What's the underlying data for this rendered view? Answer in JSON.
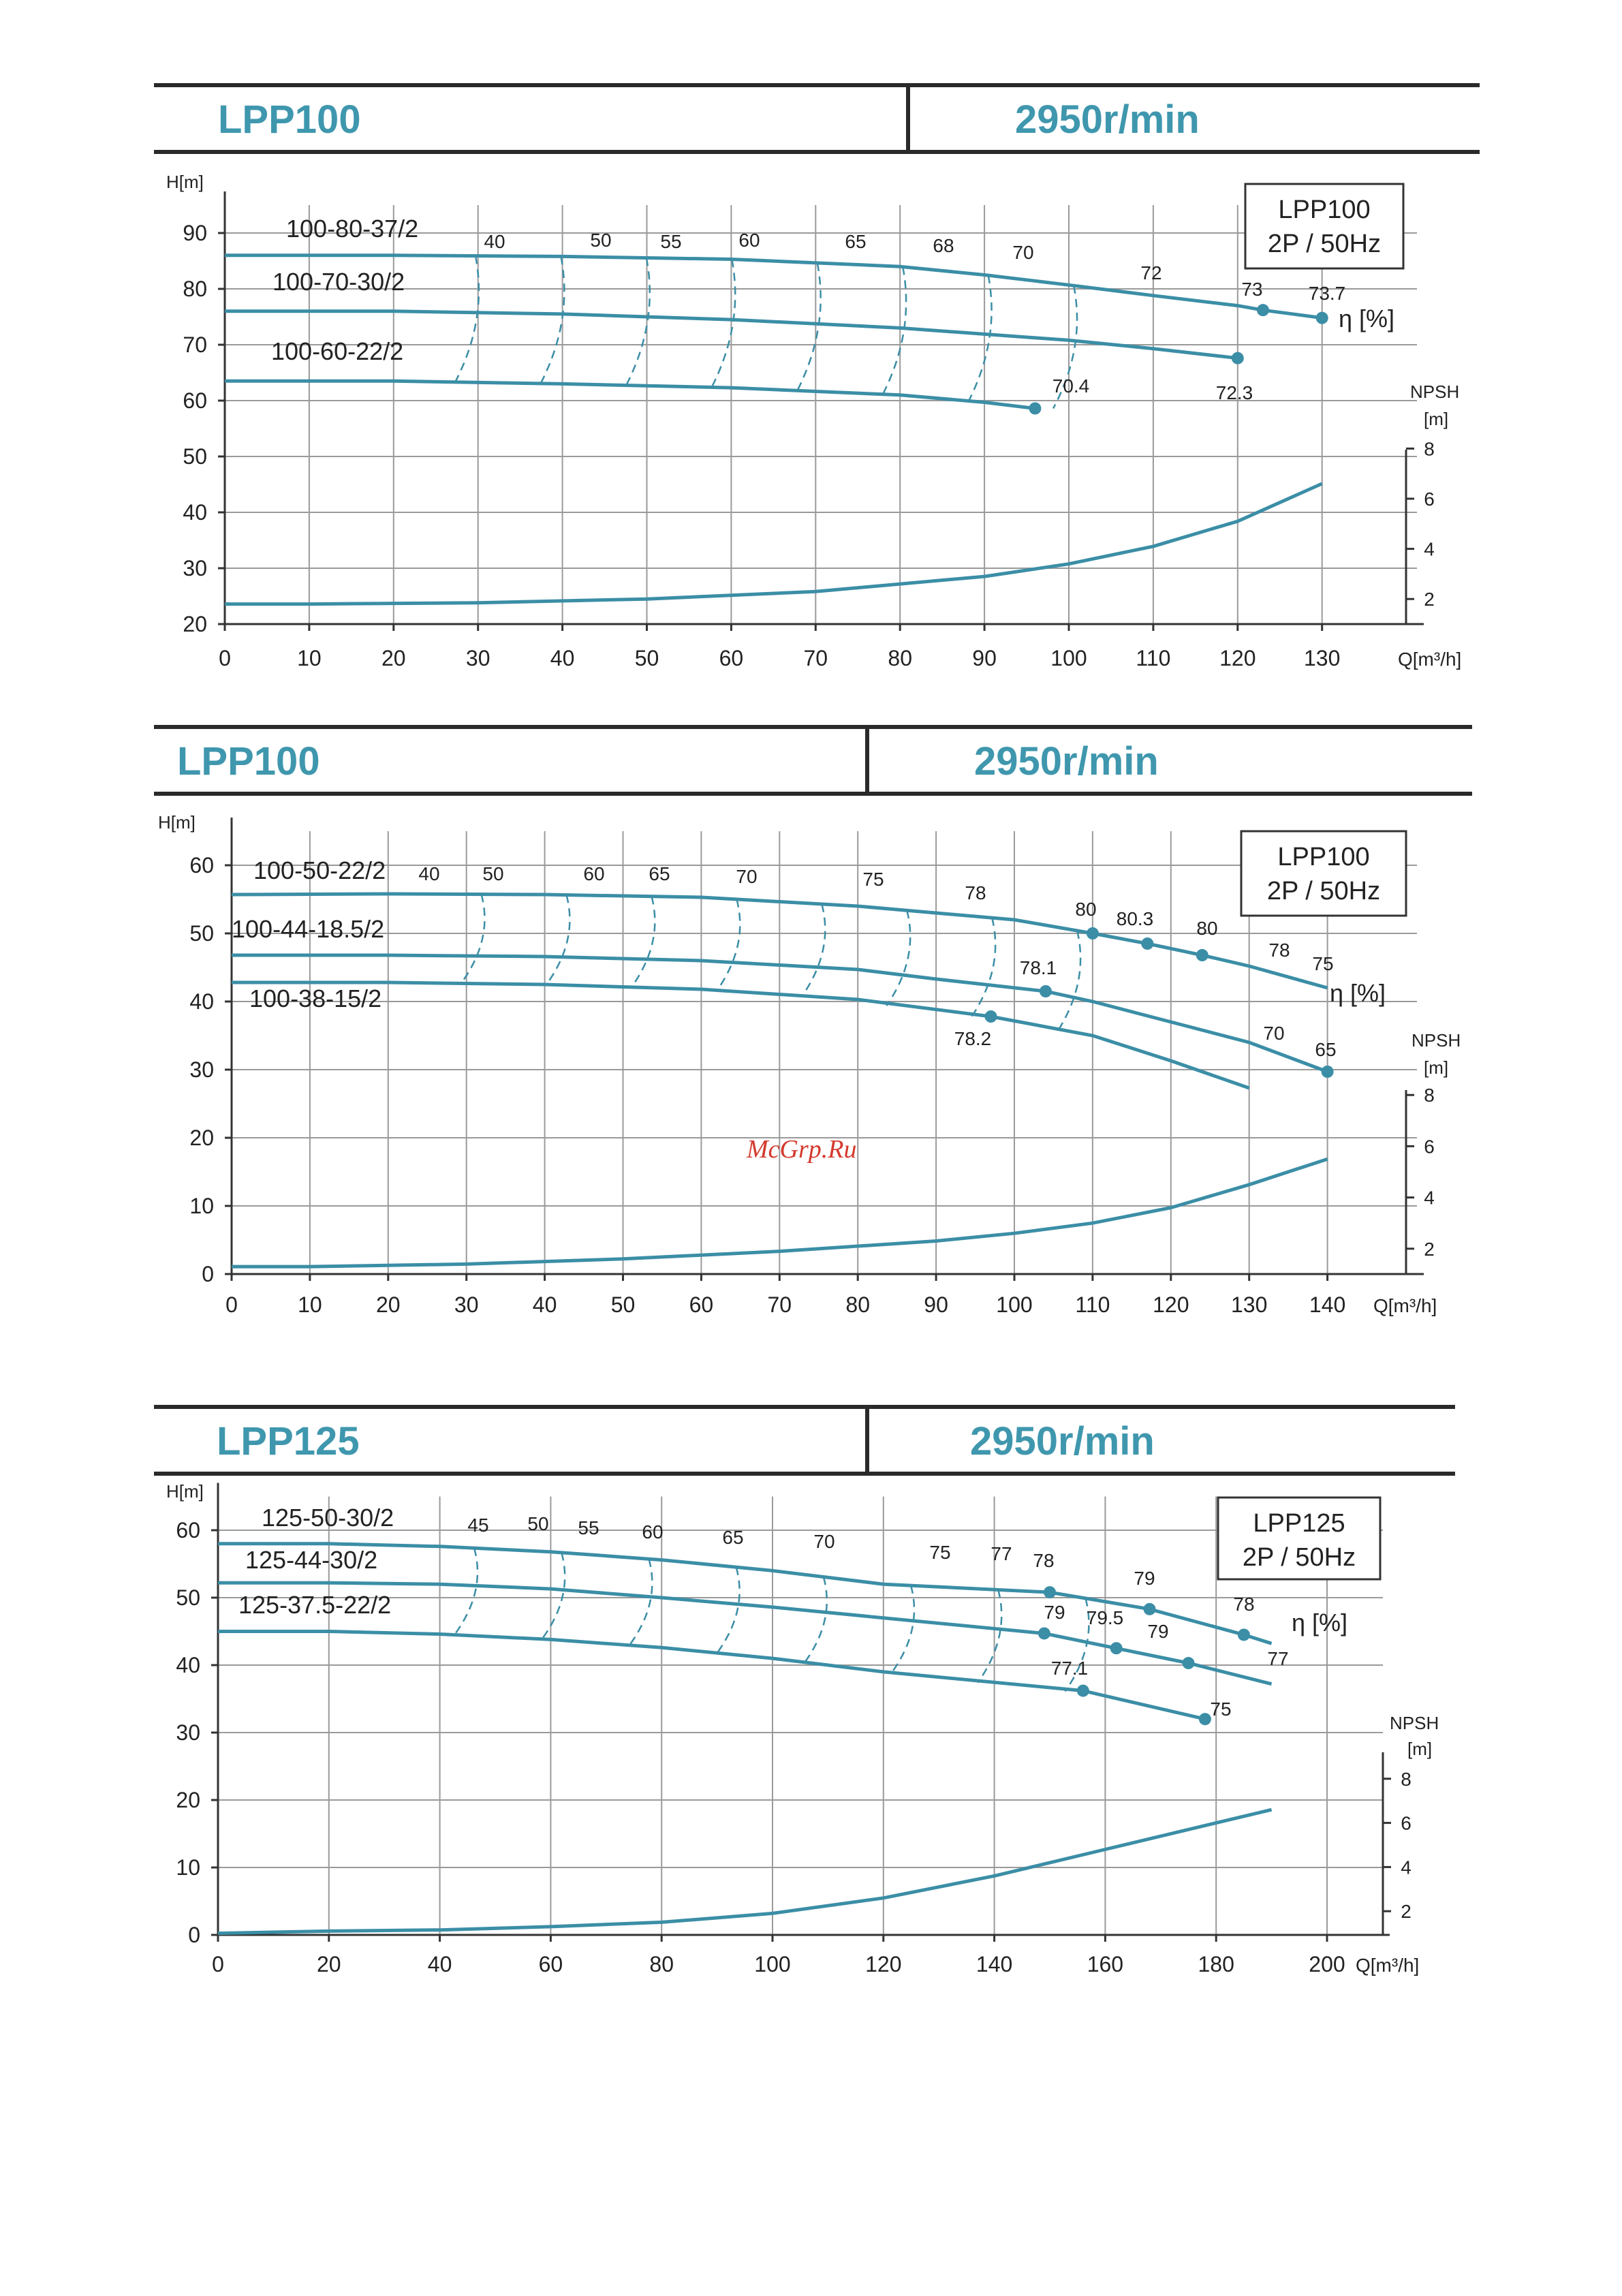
{
  "colors": {
    "curve": "#3b8ea6",
    "grid": "#9a9a9a",
    "axis": "#333333",
    "title": "#3f97ae"
  },
  "watermark": "McGrp.Ru",
  "charts": [
    {
      "header": {
        "model": "LPP100",
        "speed": "2950r/min"
      },
      "legend_box": [
        "LPP100",
        "2P / 50Hz"
      ],
      "y_axis_label": "H[m]",
      "x_axis_label": "Q[m³/h]",
      "eff_axis_label": "η [%]",
      "npsh_label_1": "NPSH",
      "npsh_label_2": "[m]",
      "x_ticks": [
        "0",
        "10",
        "20",
        "30",
        "40",
        "50",
        "60",
        "70",
        "80",
        "90",
        "100",
        "110",
        "120",
        "130"
      ],
      "y_ticks": [
        "20",
        "30",
        "40",
        "50",
        "60",
        "70",
        "80",
        "90"
      ],
      "npsh_ticks": [
        "2",
        "4",
        "6",
        "8"
      ],
      "series_labels": [
        "100-80-37/2",
        "100-70-30/2",
        "100-60-22/2"
      ],
      "eff_labels": [
        "40",
        "50",
        "55",
        "60",
        "65",
        "68",
        "70",
        "72",
        "73",
        "73.7",
        "72.3",
        "70.4"
      ]
    },
    {
      "header": {
        "model": "LPP100",
        "speed": "2950r/min"
      },
      "legend_box": [
        "LPP100",
        "2P / 50Hz"
      ],
      "y_axis_label": "H[m]",
      "x_axis_label": "Q[m³/h]",
      "eff_axis_label": "η [%]",
      "npsh_label_1": "NPSH",
      "npsh_label_2": "[m]",
      "x_ticks": [
        "0",
        "10",
        "20",
        "30",
        "40",
        "50",
        "60",
        "70",
        "80",
        "90",
        "100",
        "110",
        "120",
        "130",
        "140"
      ],
      "y_ticks": [
        "0",
        "10",
        "20",
        "30",
        "40",
        "50",
        "60"
      ],
      "npsh_ticks": [
        "2",
        "4",
        "6",
        "8"
      ],
      "series_labels": [
        "100-50-22/2",
        "100-44-18.5/2",
        "100-38-15/2"
      ],
      "eff_labels": [
        "40",
        "50",
        "60",
        "65",
        "70",
        "75",
        "78",
        "80",
        "80.3",
        "80",
        "78",
        "75",
        "78.1",
        "78.2",
        "70",
        "65"
      ]
    },
    {
      "header": {
        "model": "LPP125",
        "speed": "2950r/min"
      },
      "legend_box": [
        "LPP125",
        "2P / 50Hz"
      ],
      "y_axis_label": "H[m]",
      "x_axis_label": "Q[m³/h]",
      "eff_axis_label": "η [%]",
      "npsh_label_1": "NPSH",
      "npsh_label_2": "[m]",
      "x_ticks": [
        "0",
        "20",
        "40",
        "60",
        "80",
        "100",
        "120",
        "140",
        "160",
        "180",
        "200"
      ],
      "y_ticks": [
        "0",
        "10",
        "20",
        "30",
        "40",
        "50",
        "60"
      ],
      "npsh_ticks": [
        "2",
        "4",
        "6",
        "8"
      ],
      "series_labels": [
        "125-50-30/2",
        "125-44-30/2",
        "125-37.5-22/2"
      ],
      "eff_labels": [
        "45",
        "50",
        "55",
        "60",
        "65",
        "70",
        "75",
        "77",
        "78",
        "79",
        "78",
        "79",
        "79.5",
        "79",
        "77",
        "77.1",
        "75"
      ]
    }
  ],
  "chart_data": [
    {
      "type": "line",
      "title": "LPP100",
      "xlabel": "Q[m³/h]",
      "ylabel": "H[m]",
      "xlim": [
        0,
        135
      ],
      "ylim": [
        20,
        95
      ],
      "grid": true,
      "series": [
        {
          "name": "100-80-37/2",
          "x": [
            0,
            20,
            40,
            60,
            80,
            90,
            100,
            110,
            120,
            123,
            130
          ],
          "y": [
            86,
            86,
            85.8,
            85.3,
            84,
            82.5,
            80.7,
            78.8,
            77,
            76.2,
            74.8
          ]
        },
        {
          "name": "100-70-30/2",
          "x": [
            0,
            20,
            40,
            60,
            80,
            100,
            110,
            120
          ],
          "y": [
            76,
            76,
            75.5,
            74.5,
            73,
            70.8,
            69.3,
            67.6
          ]
        },
        {
          "name": "100-60-22/2",
          "x": [
            0,
            20,
            40,
            60,
            80,
            90,
            96
          ],
          "y": [
            63.5,
            63.5,
            63,
            62.3,
            61,
            59.7,
            58.6
          ]
        }
      ],
      "npsh": {
        "ylim": [
          0,
          9
        ],
        "x": [
          0,
          10,
          30,
          50,
          70,
          90,
          100,
          110,
          120,
          130
        ],
        "y": [
          1.8,
          1.8,
          1.85,
          2.0,
          2.3,
          2.9,
          3.4,
          4.1,
          5.1,
          6.6
        ]
      },
      "eff_markers": [
        {
          "x": 123,
          "y": 76.2,
          "label": "73"
        },
        {
          "x": 130,
          "y": 74.8,
          "label": "73.7"
        },
        {
          "x": 120,
          "y": 67.6,
          "label": "72.3"
        },
        {
          "x": 96,
          "y": 58.6,
          "label": "70.4"
        }
      ]
    },
    {
      "type": "line",
      "title": "LPP100",
      "xlabel": "Q[m³/h]",
      "ylabel": "H[m]",
      "xlim": [
        0,
        145
      ],
      "ylim": [
        0,
        65
      ],
      "grid": true,
      "series": [
        {
          "name": "100-50-22/2",
          "x": [
            0,
            20,
            40,
            60,
            80,
            100,
            110,
            117,
            124,
            130,
            140
          ],
          "y": [
            55.7,
            55.8,
            55.7,
            55.3,
            54,
            52,
            50,
            48.5,
            46.8,
            45.2,
            42
          ]
        },
        {
          "name": "100-44-18.5/2",
          "x": [
            0,
            20,
            40,
            60,
            80,
            90,
            104,
            110,
            120,
            130,
            140
          ],
          "y": [
            46.8,
            46.8,
            46.6,
            46,
            44.7,
            43.3,
            41.5,
            40,
            37,
            34,
            29.7
          ]
        },
        {
          "name": "100-38-15/2",
          "x": [
            0,
            20,
            40,
            60,
            80,
            97,
            110,
            120,
            130
          ],
          "y": [
            42.8,
            42.8,
            42.5,
            41.8,
            40.3,
            37.8,
            35,
            31.3,
            27.3
          ]
        }
      ],
      "npsh": {
        "ylim": [
          0,
          9
        ],
        "x": [
          0,
          10,
          30,
          50,
          70,
          90,
          100,
          110,
          120,
          130,
          140
        ],
        "y": [
          1.3,
          1.3,
          1.4,
          1.6,
          1.9,
          2.3,
          2.6,
          3.0,
          3.6,
          4.5,
          5.5
        ]
      },
      "eff_markers": [
        {
          "x": 110,
          "y": 50,
          "label": "80"
        },
        {
          "x": 117,
          "y": 48.5,
          "label": "80.3"
        },
        {
          "x": 124,
          "y": 46.8,
          "label": "80"
        },
        {
          "x": 104,
          "y": 41.5,
          "label": "78.1"
        },
        {
          "x": 97,
          "y": 37.8,
          "label": "78.2"
        },
        {
          "x": 140,
          "y": 29.7,
          "label": "65"
        }
      ]
    },
    {
      "type": "line",
      "title": "LPP125",
      "xlabel": "Q[m³/h]",
      "ylabel": "H[m]",
      "xlim": [
        0,
        210
      ],
      "ylim": [
        0,
        65
      ],
      "grid": true,
      "series": [
        {
          "name": "125-50-30/2",
          "x": [
            0,
            20,
            40,
            60,
            80,
            100,
            120,
            150,
            168,
            185,
            190
          ],
          "y": [
            58,
            58,
            57.6,
            56.8,
            55.6,
            54,
            52,
            50.8,
            48.3,
            44.5,
            43.2
          ]
        },
        {
          "name": "125-44-30/2",
          "x": [
            0,
            20,
            40,
            60,
            80,
            100,
            120,
            149,
            162,
            175,
            190
          ],
          "y": [
            52.2,
            52.2,
            52,
            51.3,
            50,
            48.6,
            47,
            44.7,
            42.5,
            40.3,
            37.2
          ]
        },
        {
          "name": "125-37.5-22/2",
          "x": [
            0,
            20,
            40,
            60,
            80,
            100,
            120,
            156,
            178
          ],
          "y": [
            45,
            45,
            44.6,
            43.8,
            42.6,
            41,
            39,
            36.2,
            32
          ]
        }
      ],
      "npsh": {
        "ylim": [
          0,
          9
        ],
        "x": [
          0,
          20,
          40,
          60,
          80,
          100,
          120,
          140,
          160,
          180,
          190
        ],
        "y": [
          1.0,
          1.1,
          1.15,
          1.3,
          1.5,
          1.9,
          2.6,
          3.6,
          4.8,
          6.0,
          6.6
        ]
      },
      "eff_markers": [
        {
          "x": 150,
          "y": 50.8,
          "label": "78"
        },
        {
          "x": 168,
          "y": 48.3,
          "label": "79"
        },
        {
          "x": 185,
          "y": 44.5,
          "label": "78"
        },
        {
          "x": 149,
          "y": 44.7,
          "label": "79"
        },
        {
          "x": 162,
          "y": 42.5,
          "label": "79.5"
        },
        {
          "x": 175,
          "y": 40.3,
          "label": "79"
        },
        {
          "x": 156,
          "y": 36.2,
          "label": "77.1"
        },
        {
          "x": 178,
          "y": 32,
          "label": "75"
        }
      ]
    }
  ]
}
